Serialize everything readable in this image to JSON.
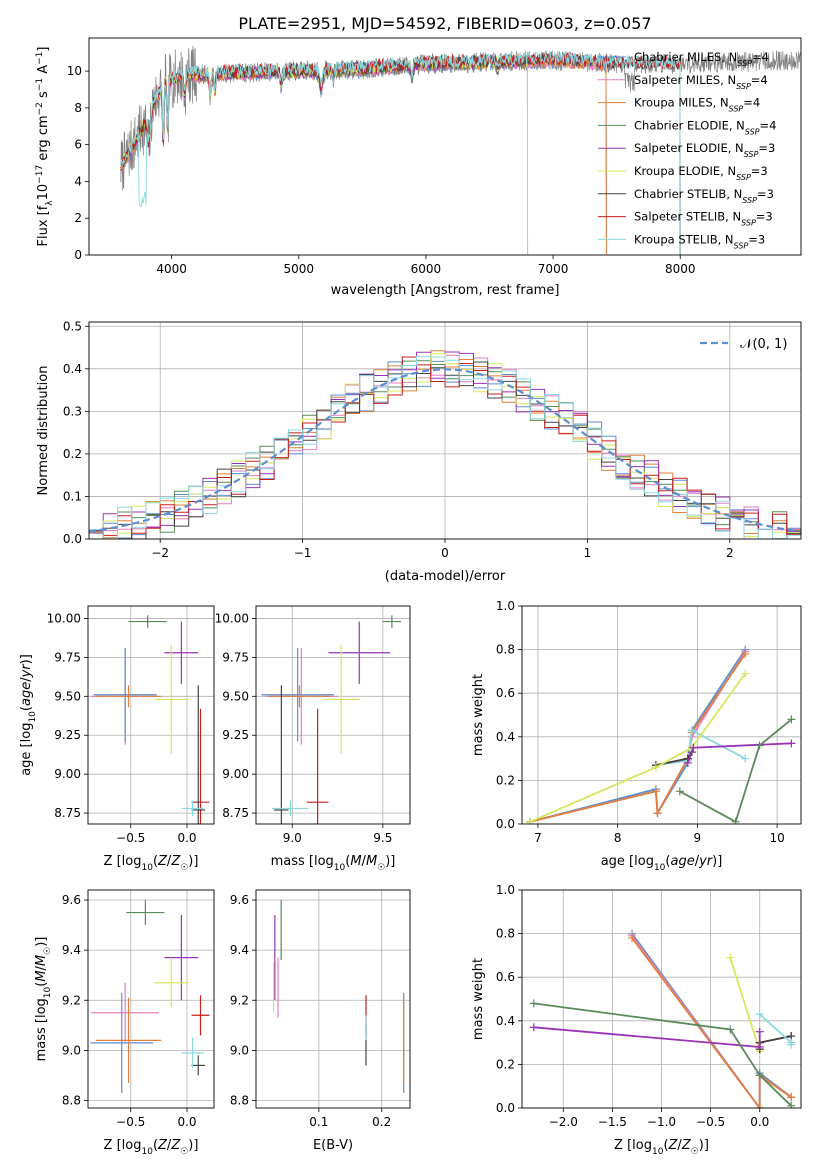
{
  "figure": {
    "title": "PLATE=2951, MJD=54592, FIBERID=0603, z=0.057"
  },
  "chart_data": [
    {
      "id": "spectrum",
      "type": "line",
      "title": "PLATE=2951, MJD=54592, FIBERID=0603, z=0.057",
      "xlabel": "wavelength [Angstrom, rest frame]",
      "ylabel": "Flux [f_λ 10^-17 erg cm^-2 s^-1 A^-1]",
      "xlim": [
        3350,
        8950
      ],
      "ylim": [
        0,
        11.8
      ],
      "xticks": [
        "4000",
        "5000",
        "6000",
        "7000",
        "8000"
      ],
      "yticks": [
        "0",
        "2",
        "4",
        "6",
        "8",
        "10"
      ],
      "grid": false,
      "legend_position": "right",
      "series": [
        {
          "name": "Chabrier MILES, N_SSP=4",
          "color": "#5b8fd1",
          "range": [
            3600,
            7420
          ]
        },
        {
          "name": "Salpeter MILES, N_SSP=4",
          "color": "#e57ec0",
          "range": [
            3600,
            7420
          ]
        },
        {
          "name": "Kroupa MILES, N_SSP=4",
          "color": "#e0803a",
          "range": [
            3600,
            7420
          ]
        },
        {
          "name": "Chabrier ELODIE, N_SSP=4",
          "color": "#5a8a5a",
          "range": [
            3600,
            6800
          ]
        },
        {
          "name": "Salpeter ELODIE, N_SSP=3",
          "color": "#9a32b8",
          "range": [
            3600,
            6800
          ]
        },
        {
          "name": "Kroupa ELODIE, N_SSP=3",
          "color": "#d4e85a",
          "range": [
            3600,
            6800
          ]
        },
        {
          "name": "Chabrier STELIB, N_SSP=3",
          "color": "#444444",
          "range": [
            3600,
            8000
          ]
        },
        {
          "name": "Salpeter STELIB, N_SSP=3",
          "color": "#c81e1e",
          "range": [
            3600,
            8000
          ]
        },
        {
          "name": "Kroupa STELIB, N_SSP=3",
          "color": "#8ad8e0",
          "range": [
            3600,
            8000
          ]
        }
      ],
      "data_color": "#808080",
      "data_range": [
        3600,
        8950
      ],
      "continuum_points": [
        [
          3600,
          4.8
        ],
        [
          3750,
          6.6
        ],
        [
          3850,
          8.2
        ],
        [
          3950,
          9.4
        ],
        [
          4100,
          9.8
        ],
        [
          4500,
          9.9
        ],
        [
          5000,
          10.0
        ],
        [
          5500,
          10.1
        ],
        [
          6000,
          10.4
        ],
        [
          6500,
          10.5
        ],
        [
          7000,
          10.6
        ],
        [
          7500,
          10.4
        ],
        [
          8000,
          10.4
        ],
        [
          8950,
          10.6
        ]
      ]
    },
    {
      "id": "residuals",
      "type": "line",
      "xlabel": "(data-model)/error",
      "ylabel": "Normed distribution",
      "xlim": [
        -2.5,
        2.5
      ],
      "ylim": [
        0,
        0.51
      ],
      "xticks": [
        "−2",
        "−1",
        "0",
        "1",
        "2"
      ],
      "yticks": [
        "0.0",
        "0.1",
        "0.2",
        "0.3",
        "0.4",
        "0.5"
      ],
      "grid": true,
      "legend_position": "top-right",
      "reference_label": "𝒩(0, 1)",
      "reference_color": "#5b8fd1",
      "bin_width": 0.1
    },
    {
      "id": "age-vs-Z",
      "type": "scatter",
      "xlabel": "Z [log10(Z/Z☉)]",
      "ylabel": "age [log10(age/yr)]",
      "xlim": [
        -0.88,
        0.24
      ],
      "ylim": [
        8.68,
        10.08
      ],
      "xticks": [
        "−0.5",
        "0.0"
      ],
      "yticks": [
        "8.75",
        "9.00",
        "9.25",
        "9.50",
        "9.75",
        "10.00"
      ],
      "grid": true,
      "points": [
        {
          "color": "#5a8a5a",
          "x": -0.35,
          "xerr": 0.17,
          "y": 9.98,
          "yerr": 0.04
        },
        {
          "color": "#9a32b8",
          "x": -0.05,
          "xerr": 0.15,
          "y": 9.78,
          "yerr": 0.2
        },
        {
          "color": "#d4e85a",
          "x": -0.14,
          "xerr": 0.15,
          "y": 9.48,
          "yerr": 0.35
        },
        {
          "color": "#e57ec0",
          "x": -0.55,
          "xerr": 0.3,
          "y": 9.5,
          "yerr": 0.31
        },
        {
          "color": "#5b8fd1",
          "x": -0.55,
          "xerr": 0.28,
          "y": 9.51,
          "yerr": 0.3
        },
        {
          "color": "#e0803a",
          "x": -0.52,
          "xerr": 0.29,
          "y": 9.5,
          "yerr": 0.07
        },
        {
          "color": "#c81e1e",
          "x": 0.12,
          "xerr": 0.08,
          "y": 8.82,
          "yerr": 0.6
        },
        {
          "color": "#444444",
          "x": 0.1,
          "xerr": 0.06,
          "y": 8.77,
          "yerr": 0.8
        },
        {
          "color": "#8ad8e0",
          "x": 0.05,
          "xerr": 0.1,
          "y": 8.78,
          "yerr": 0.05
        }
      ]
    },
    {
      "id": "age-vs-mass",
      "type": "scatter",
      "xlabel": "mass [log10(M/M☉)]",
      "ylabel": "",
      "xlim": [
        8.8,
        9.65
      ],
      "ylim": [
        8.68,
        10.08
      ],
      "xticks": [
        "9.0",
        "9.5"
      ],
      "yticks": [
        "8.75",
        "9.00",
        "9.25",
        "9.50",
        "9.75",
        "10.00"
      ],
      "grid": true,
      "points": [
        {
          "color": "#5a8a5a",
          "x": 9.55,
          "xerr": 0.05,
          "y": 9.98,
          "yerr": 0.04
        },
        {
          "color": "#9a32b8",
          "x": 9.37,
          "xerr": 0.17,
          "y": 9.78,
          "yerr": 0.2
        },
        {
          "color": "#d4e85a",
          "x": 9.27,
          "xerr": 0.1,
          "y": 9.48,
          "yerr": 0.35
        },
        {
          "color": "#e57ec0",
          "x": 9.05,
          "xerr": 0.2,
          "y": 9.5,
          "yerr": 0.31
        },
        {
          "color": "#5b8fd1",
          "x": 9.03,
          "xerr": 0.2,
          "y": 9.51,
          "yerr": 0.3
        },
        {
          "color": "#e0803a",
          "x": 9.04,
          "xerr": 0.17,
          "y": 9.5,
          "yerr": 0.07
        },
        {
          "color": "#c81e1e",
          "x": 9.14,
          "xerr": 0.06,
          "y": 8.82,
          "yerr": 0.6
        },
        {
          "color": "#444444",
          "x": 8.94,
          "xerr": 0.04,
          "y": 8.77,
          "yerr": 0.8
        },
        {
          "color": "#8ad8e0",
          "x": 8.99,
          "xerr": 0.1,
          "y": 8.78,
          "yerr": 0.05
        }
      ]
    },
    {
      "id": "mass-weight-vs-age",
      "type": "line",
      "xlabel": "age [log10(age/yr)]",
      "ylabel": "mass weight",
      "xlim": [
        6.8,
        10.3
      ],
      "ylim": [
        0,
        1.0
      ],
      "xticks": [
        "7",
        "8",
        "9",
        "10"
      ],
      "yticks": [
        "0.0",
        "0.2",
        "0.4",
        "0.6",
        "0.8",
        "1.0"
      ],
      "grid": true,
      "series": [
        {
          "color": "#5b8fd1",
          "points": [
            [
              6.9,
              0.01
            ],
            [
              8.48,
              0.16
            ],
            [
              8.5,
              0.05
            ],
            [
              8.88,
              0.28
            ],
            [
              8.93,
              0.43
            ],
            [
              9.6,
              0.8
            ]
          ]
        },
        {
          "color": "#e57ec0",
          "points": [
            [
              6.9,
              0.01
            ],
            [
              8.48,
              0.15
            ],
            [
              8.5,
              0.05
            ],
            [
              8.88,
              0.3
            ],
            [
              8.93,
              0.4
            ],
            [
              9.6,
              0.79
            ]
          ]
        },
        {
          "color": "#e0803a",
          "points": [
            [
              6.9,
              0.01
            ],
            [
              8.48,
              0.15
            ],
            [
              8.5,
              0.05
            ],
            [
              8.88,
              0.3
            ],
            [
              8.93,
              0.42
            ],
            [
              9.6,
              0.78
            ]
          ]
        },
        {
          "color": "#8ad8e0",
          "points": [
            [
              8.48,
              0.27
            ],
            [
              8.88,
              0.29
            ],
            [
              8.93,
              0.43
            ],
            [
              9.6,
              0.3
            ]
          ]
        },
        {
          "color": "#c81e1e",
          "points": [
            [
              8.48,
              0.27
            ],
            [
              8.88,
              0.3
            ],
            [
              8.93,
              0.33
            ]
          ]
        },
        {
          "color": "#444444",
          "points": [
            [
              8.48,
              0.27
            ],
            [
              8.88,
              0.3
            ],
            [
              8.93,
              0.33
            ]
          ]
        },
        {
          "color": "#d4e85a",
          "points": [
            [
              6.9,
              0.01
            ],
            [
              8.48,
              0.26
            ],
            [
              8.93,
              0.35
            ],
            [
              9.6,
              0.69
            ]
          ]
        },
        {
          "color": "#9a32b8",
          "points": [
            [
              8.88,
              0.28
            ],
            [
              8.95,
              0.35
            ],
            [
              10.18,
              0.37
            ]
          ]
        },
        {
          "color": "#5a8a5a",
          "points": [
            [
              8.78,
              0.15
            ],
            [
              9.48,
              0.01
            ],
            [
              9.78,
              0.36
            ],
            [
              10.18,
              0.48
            ]
          ]
        }
      ]
    },
    {
      "id": "mass-vs-Z",
      "type": "scatter",
      "xlabel": "Z [log10(Z/Z☉)]",
      "ylabel": "mass [log10(M/M☉)]",
      "xlim": [
        -0.88,
        0.24
      ],
      "ylim": [
        8.77,
        9.64
      ],
      "xticks": [
        "−0.5",
        "0.0"
      ],
      "yticks": [
        "8.8",
        "9.0",
        "9.2",
        "9.4",
        "9.6"
      ],
      "grid": true,
      "points": [
        {
          "color": "#5a8a5a",
          "x": -0.37,
          "xerr": 0.17,
          "y": 9.55,
          "yerr": 0.05
        },
        {
          "color": "#9a32b8",
          "x": -0.05,
          "xerr": 0.15,
          "y": 9.37,
          "yerr": 0.17
        },
        {
          "color": "#d4e85a",
          "x": -0.14,
          "xerr": 0.15,
          "y": 9.27,
          "yerr": 0.1
        },
        {
          "color": "#e57ec0",
          "x": -0.55,
          "xerr": 0.3,
          "y": 9.15,
          "yerr": 0.12
        },
        {
          "color": "#5b8fd1",
          "x": -0.58,
          "xerr": 0.28,
          "y": 9.03,
          "yerr": 0.2
        },
        {
          "color": "#e0803a",
          "x": -0.52,
          "xerr": 0.29,
          "y": 9.04,
          "yerr": 0.17
        },
        {
          "color": "#c81e1e",
          "x": 0.12,
          "xerr": 0.08,
          "y": 9.14,
          "yerr": 0.08
        },
        {
          "color": "#444444",
          "x": 0.1,
          "xerr": 0.06,
          "y": 8.94,
          "yerr": 0.04
        },
        {
          "color": "#8ad8e0",
          "x": 0.05,
          "xerr": 0.1,
          "y": 8.99,
          "yerr": 0.06
        }
      ]
    },
    {
      "id": "mass-vs-EBV",
      "type": "scatter",
      "xlabel": "E(B-V)",
      "ylabel": "",
      "xlim": [
        0.0,
        0.245
      ],
      "ylim": [
        8.77,
        9.64
      ],
      "xticks": [
        "0.1",
        "0.2"
      ],
      "yticks": [
        "8.8",
        "9.0",
        "9.2",
        "9.4",
        "9.6"
      ],
      "grid": true,
      "points": [
        {
          "color": "#5a8a5a",
          "x": 0.04,
          "xerr": 0.0,
          "y": 9.48,
          "yerr": 0.12
        },
        {
          "color": "#9a32b8",
          "x": 0.03,
          "xerr": 0.0,
          "y": 9.37,
          "yerr": 0.17
        },
        {
          "color": "#d4e85a",
          "x": 0.028,
          "xerr": 0.0,
          "y": 9.25,
          "yerr": 0.1
        },
        {
          "color": "#e57ec0",
          "x": 0.035,
          "xerr": 0.0,
          "y": 9.25,
          "yerr": 0.12
        },
        {
          "color": "#c81e1e",
          "x": 0.175,
          "xerr": 0.0,
          "y": 9.14,
          "yerr": 0.08
        },
        {
          "color": "#444444",
          "x": 0.175,
          "xerr": 0.0,
          "y": 9.02,
          "yerr": 0.08
        },
        {
          "color": "#8ad8e0",
          "x": 0.175,
          "xerr": 0.0,
          "y": 9.09,
          "yerr": 0.05
        },
        {
          "color": "#5b8fd1",
          "x": 0.235,
          "xerr": 0.0,
          "y": 9.03,
          "yerr": 0.2
        },
        {
          "color": "#e0803a",
          "x": 0.235,
          "xerr": 0.0,
          "y": 9.04,
          "yerr": 0.17
        }
      ]
    },
    {
      "id": "mass-weight-vs-Z",
      "type": "line",
      "xlabel": "Z [log10(Z/Z☉)]",
      "ylabel": "mass weight",
      "xlim": [
        -2.42,
        0.42
      ],
      "ylim": [
        0,
        1.0
      ],
      "xticks": [
        "−2.0",
        "−1.5",
        "−1.0",
        "−0.5",
        "0.0"
      ],
      "yticks": [
        "0.0",
        "0.2",
        "0.4",
        "0.6",
        "0.8",
        "1.0"
      ],
      "grid": true,
      "series": [
        {
          "color": "#5b8fd1",
          "points": [
            [
              -1.3,
              0.8
            ],
            [
              0.0,
              0.0
            ],
            [
              0.0,
              0.16
            ],
            [
              0.32,
              0.05
            ]
          ]
        },
        {
          "color": "#e57ec0",
          "points": [
            [
              -1.3,
              0.79
            ],
            [
              0.0,
              0.0
            ],
            [
              0.0,
              0.15
            ],
            [
              0.32,
              0.05
            ]
          ]
        },
        {
          "color": "#e0803a",
          "points": [
            [
              -1.3,
              0.78
            ],
            [
              0.0,
              0.0
            ],
            [
              0.0,
              0.15
            ],
            [
              0.32,
              0.05
            ]
          ]
        },
        {
          "color": "#d4e85a",
          "points": [
            [
              -0.3,
              0.69
            ],
            [
              0.0,
              0.26
            ],
            [
              0.0,
              0.35
            ]
          ]
        },
        {
          "color": "#c81e1e",
          "points": [
            [
              0.0,
              0.27
            ],
            [
              0.0,
              0.3
            ],
            [
              0.32,
              0.33
            ]
          ]
        },
        {
          "color": "#444444",
          "points": [
            [
              0.0,
              0.27
            ],
            [
              0.0,
              0.3
            ],
            [
              0.32,
              0.33
            ]
          ]
        },
        {
          "color": "#8ad8e0",
          "points": [
            [
              0.0,
              0.43
            ],
            [
              0.32,
              0.3
            ],
            [
              0.32,
              0.29
            ]
          ]
        },
        {
          "color": "#9a32b8",
          "points": [
            [
              -2.3,
              0.37
            ],
            [
              0.0,
              0.28
            ],
            [
              0.0,
              0.35
            ]
          ]
        },
        {
          "color": "#5a8a5a",
          "points": [
            [
              -2.3,
              0.48
            ],
            [
              -0.3,
              0.36
            ],
            [
              0.0,
              0.15
            ],
            [
              0.32,
              0.01
            ]
          ]
        }
      ]
    }
  ]
}
